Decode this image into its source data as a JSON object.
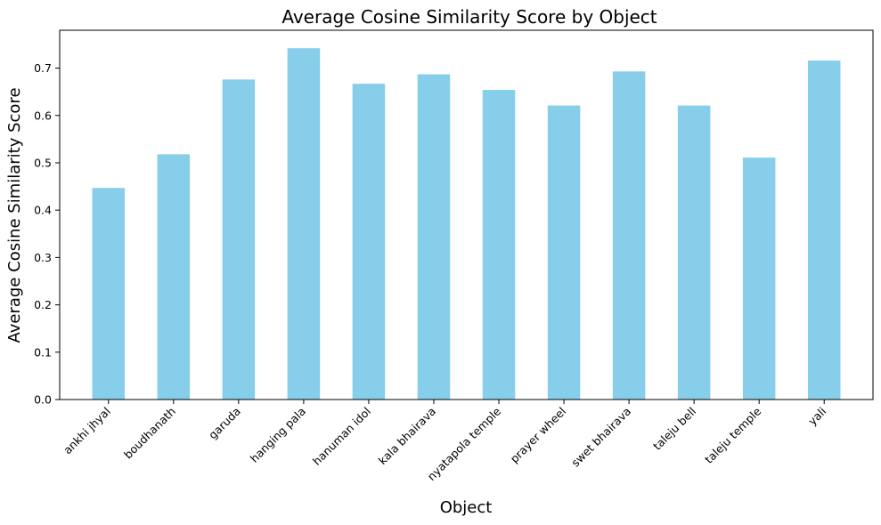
{
  "chart_data": {
    "type": "bar",
    "title": "Average Cosine Similarity Score by Object",
    "xlabel": "Object",
    "ylabel": "Average Cosine Similarity Score",
    "categories": [
      "ankhi jhyal",
      "boudhanath",
      "garuda",
      "hanging pala",
      "hanuman idol",
      "kala bhairava",
      "nyatapola temple",
      "prayer wheel",
      "swet bhairava",
      "taleju bell",
      "taleju temple",
      "yali"
    ],
    "values": [
      0.447,
      0.518,
      0.676,
      0.742,
      0.667,
      0.687,
      0.654,
      0.621,
      0.693,
      0.621,
      0.511,
      0.716
    ],
    "yticks": [
      0.0,
      0.1,
      0.2,
      0.3,
      0.4,
      0.5,
      0.6,
      0.7
    ],
    "ylim": [
      0,
      0.78
    ],
    "grid": false,
    "bar_color": "#87CEEB"
  }
}
